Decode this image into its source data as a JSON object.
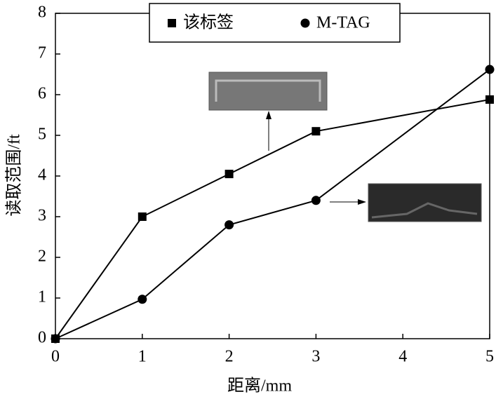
{
  "chart_data": {
    "type": "line",
    "x_label": "距离/mm",
    "y_label": "读取范围/ft",
    "x": [
      0,
      1,
      2,
      3,
      5
    ],
    "series": [
      {
        "name": "该标签",
        "color": "#000000",
        "marker": "square",
        "values": [
          0,
          3.0,
          4.05,
          5.1,
          5.88
        ]
      },
      {
        "name": "M-TAG",
        "color": "#000000",
        "marker": "circle",
        "values": [
          0,
          0.97,
          2.8,
          3.4,
          6.62
        ]
      }
    ],
    "xlim": [
      0,
      5
    ],
    "xticks": [
      0,
      1,
      2,
      3,
      4,
      5
    ],
    "ylim": [
      0,
      8
    ],
    "yticks": [
      0,
      1,
      2,
      3,
      4,
      5,
      6,
      7,
      8
    ],
    "legend": "top"
  }
}
